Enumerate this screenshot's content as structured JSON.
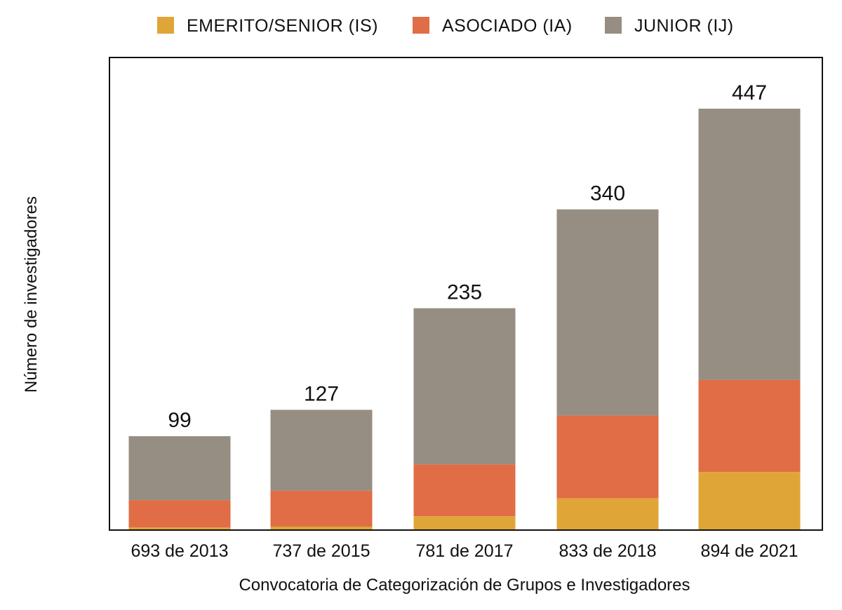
{
  "chart_data": {
    "type": "bar",
    "stacked": true,
    "title": "",
    "xlabel": "Convocatoria de Categorización de Grupos e Investigadores",
    "ylabel": "Número de investigadores",
    "categories": [
      "693 de 2013",
      "737 de 2015",
      "781 de 2017",
      "833 de 2018",
      "894 de 2021"
    ],
    "series": [
      {
        "name": "EMERITO/SENIOR (IS)",
        "color": "#DFA637",
        "values": [
          2,
          3,
          14,
          33,
          61
        ]
      },
      {
        "name": "ASOCIADO (IA)",
        "color": "#E06D45",
        "values": [
          29,
          38,
          55,
          88,
          98
        ]
      },
      {
        "name": "JUNIOR (IJ)",
        "color": "#968E82",
        "values": [
          68,
          86,
          166,
          219,
          288
        ]
      }
    ],
    "totals": [
      "99",
      "127",
      "235",
      "340",
      "447"
    ],
    "ylim": [
      0,
      480
    ],
    "y_axis_visible": false,
    "grid": false,
    "legend": "top-center"
  }
}
